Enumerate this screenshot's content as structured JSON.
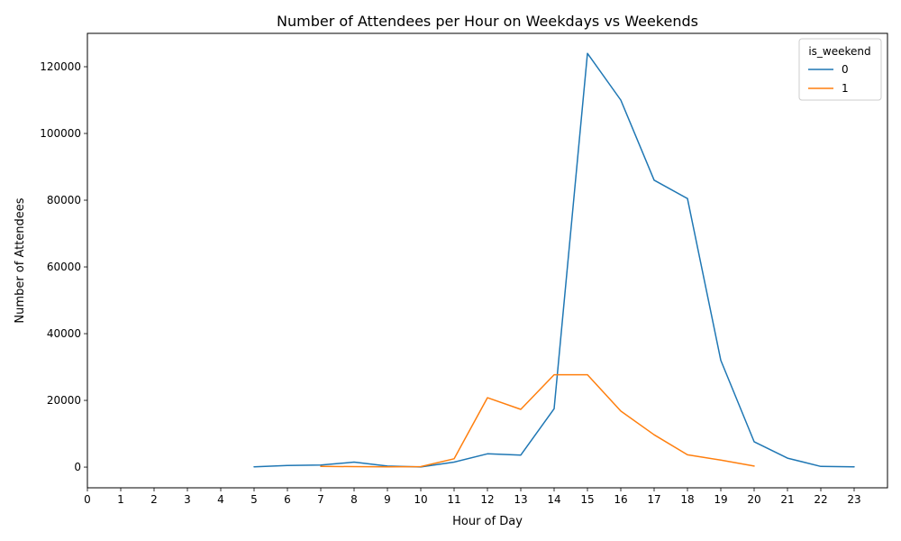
{
  "chart_data": {
    "type": "line",
    "title": "Number of Attendees per Hour on Weekdays vs Weekends",
    "xlabel": "Hour of Day",
    "ylabel": "Number of Attendees",
    "xlim": [
      0,
      24
    ],
    "ylim": [
      -6200,
      130000
    ],
    "x_ticks": [
      0,
      1,
      2,
      3,
      4,
      5,
      6,
      7,
      8,
      9,
      10,
      11,
      12,
      13,
      14,
      15,
      16,
      17,
      18,
      19,
      20,
      21,
      22,
      23
    ],
    "y_ticks": [
      0,
      20000,
      40000,
      60000,
      80000,
      100000,
      120000
    ],
    "grid": false,
    "legend": {
      "title": "is_weekend",
      "placement": "top-right"
    },
    "series": [
      {
        "name": "0",
        "color": "#1f77b4",
        "x": [
          5,
          6,
          7,
          8,
          9,
          10,
          11,
          12,
          13,
          14,
          15,
          16,
          17,
          18,
          19,
          20,
          21,
          22,
          23
        ],
        "y": [
          100,
          500,
          600,
          1500,
          300,
          50,
          1500,
          4000,
          3600,
          17500,
          124000,
          110000,
          86000,
          80500,
          32000,
          7600,
          2700,
          200,
          100
        ]
      },
      {
        "name": "1",
        "color": "#ff7f0e",
        "x": [
          7,
          8,
          9,
          10,
          11,
          12,
          13,
          14,
          15,
          16,
          17,
          18,
          19,
          20
        ],
        "y": [
          200,
          150,
          100,
          150,
          2500,
          20800,
          17300,
          27700,
          27700,
          16800,
          9700,
          3700,
          2100,
          300
        ]
      }
    ]
  }
}
